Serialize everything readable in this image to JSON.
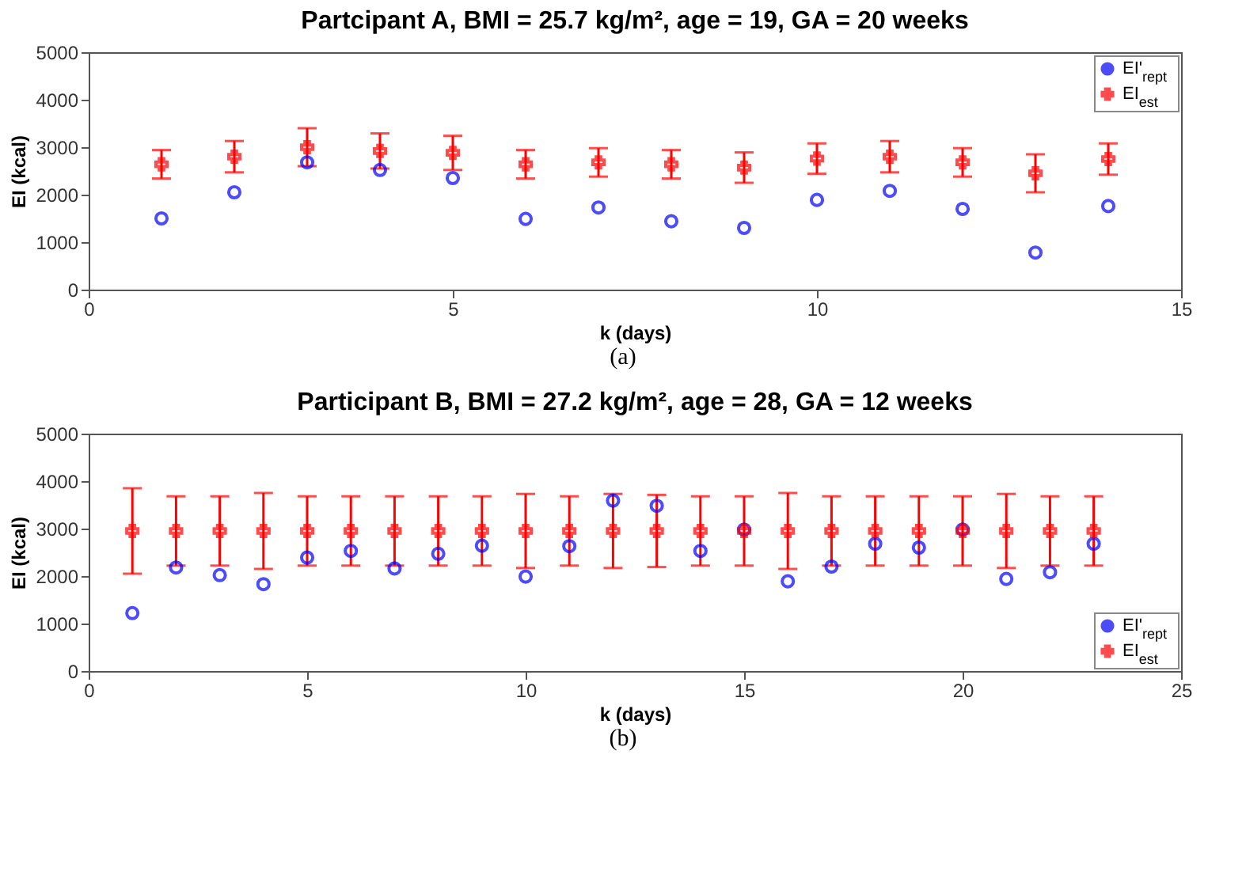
{
  "chart_data": [
    {
      "type": "scatter",
      "title": "Partcipant A, BMI = 25.7 kg/m², age = 19, GA = 20 weeks",
      "xlabel": "k (days)",
      "ylabel": "EI (kcal)",
      "annotations": [
        "(a)"
      ],
      "x": [
        1,
        2,
        3,
        4,
        5,
        6,
        7,
        8,
        9,
        10,
        11,
        12,
        13,
        14
      ],
      "xlim": [
        0,
        15
      ],
      "xticks": [
        0,
        5,
        10,
        15
      ],
      "ylim": [
        0,
        5000
      ],
      "yticks": [
        0,
        1000,
        2000,
        3000,
        4000,
        5000
      ],
      "legend": "top right",
      "series": [
        {
          "name": "EI'$_{rept}$",
          "color": "#0000ff",
          "marker": "circle",
          "values": [
            1500,
            2050,
            2680,
            2520,
            2350,
            1490,
            1730,
            1440,
            1300,
            1890,
            2080,
            1700,
            780,
            1760
          ]
        },
        {
          "name": "EI$_{est}$",
          "color": "#ff0000",
          "marker": "cross",
          "values": [
            2640,
            2800,
            3000,
            2920,
            2880,
            2640,
            2680,
            2640,
            2570,
            2760,
            2800,
            2680,
            2450,
            2750
          ],
          "errors": [
            300,
            330,
            400,
            370,
            360,
            300,
            300,
            300,
            320,
            320,
            330,
            300,
            400,
            330
          ]
        }
      ]
    },
    {
      "type": "scatter",
      "title": "Participant B, BMI = 27.2 kg/m², age = 28, GA = 12 weeks",
      "xlabel": "k (days)",
      "ylabel": "EI (kcal)",
      "annotations": [
        "(b)"
      ],
      "x": [
        1,
        2,
        3,
        4,
        5,
        6,
        7,
        8,
        9,
        10,
        11,
        12,
        13,
        14,
        15,
        16,
        17,
        18,
        19,
        20,
        21,
        22,
        23
      ],
      "xlim": [
        0,
        25
      ],
      "xticks": [
        0,
        5,
        10,
        15,
        20,
        25
      ],
      "ylim": [
        0,
        5000
      ],
      "yticks": [
        0,
        1000,
        2000,
        3000,
        4000,
        5000
      ],
      "legend": "bottom right",
      "series": [
        {
          "name": "EI'$_{rept}$",
          "color": "#0000ff",
          "marker": "circle",
          "values": [
            1220,
            2180,
            2020,
            1830,
            2390,
            2530,
            2160,
            2470,
            2640,
            1990,
            2630,
            3590,
            3480,
            2530,
            2980,
            1890,
            2200,
            2680,
            2600,
            2980,
            1940,
            2080,
            2680
          ]
        },
        {
          "name": "EI$_{est}$",
          "color": "#ff0000",
          "marker": "cross",
          "values": [
            2950,
            2950,
            2950,
            2950,
            2950,
            2950,
            2950,
            2950,
            2950,
            2950,
            2950,
            2950,
            2950,
            2950,
            2950,
            2950,
            2950,
            2950,
            2950,
            2950,
            2950,
            2950,
            2950
          ],
          "errors": [
            900,
            730,
            730,
            800,
            730,
            730,
            730,
            730,
            730,
            780,
            730,
            780,
            760,
            730,
            730,
            800,
            730,
            730,
            730,
            730,
            780,
            730,
            730
          ]
        }
      ]
    }
  ]
}
